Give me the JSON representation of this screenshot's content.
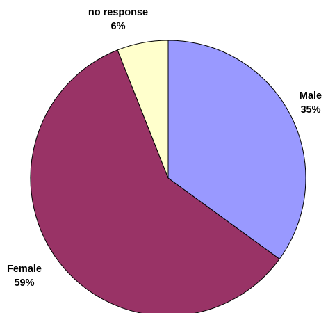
{
  "chart_data": {
    "type": "pie",
    "slices": [
      {
        "label": "Male",
        "value": 35,
        "pct_label": "35%",
        "color": "#9999FF"
      },
      {
        "label": "Female",
        "value": 59,
        "pct_label": "59%",
        "color": "#993366"
      },
      {
        "label": "no response",
        "value": 6,
        "pct_label": "6%",
        "color": "#FFFFCC"
      }
    ],
    "start": "12 o'clock, clockwise",
    "legend": "none (labels beside slices)"
  }
}
